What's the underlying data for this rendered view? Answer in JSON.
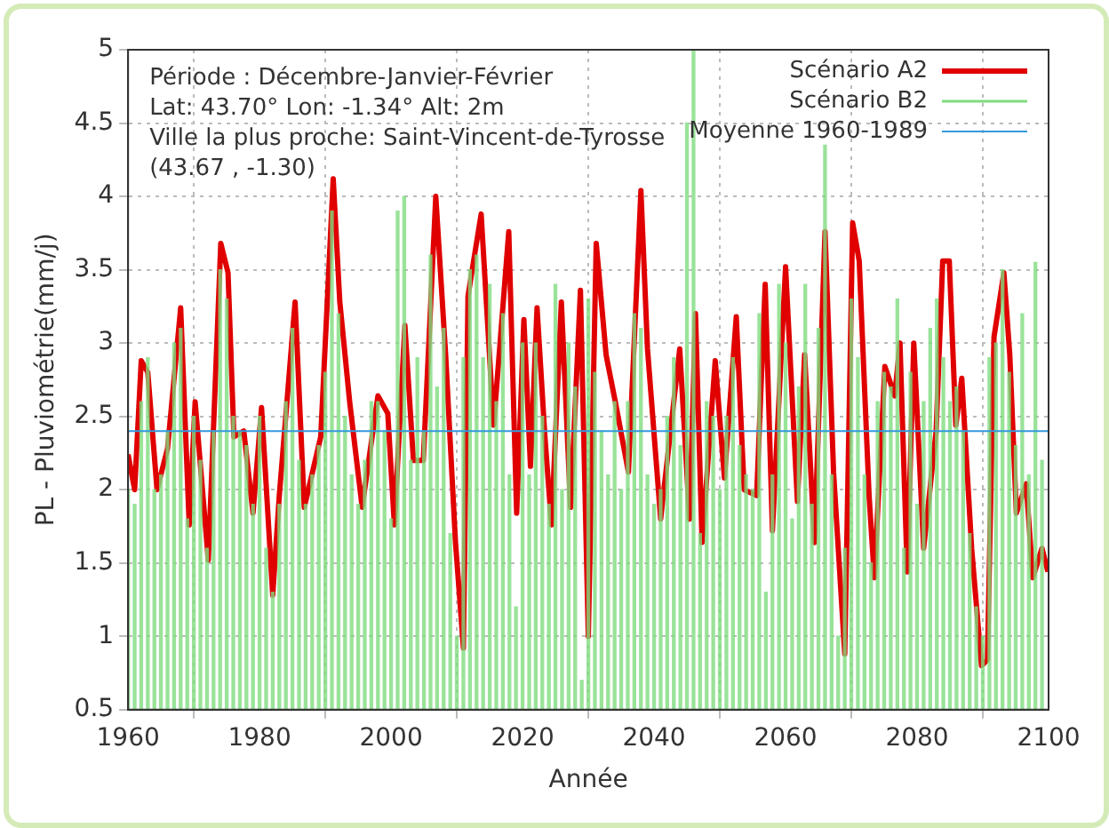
{
  "chart_data": {
    "type": "line",
    "xlabel": "Année",
    "ylabel": "PL - Pluviométrie(mm/j)",
    "annotations": [
      "Période : Décembre-Janvier-Février",
      "Lat: 43.70° Lon: -1.34° Alt: 2m",
      "Ville la plus proche: Saint-Vincent-de-Tyrosse",
      "(43.67 , -1.30)"
    ],
    "xlim": [
      1960,
      2100
    ],
    "xticks": [
      1960,
      1980,
      2000,
      2020,
      2040,
      2060,
      2080,
      2100
    ],
    "ylim": [
      0.5,
      5
    ],
    "yticks": [
      0.5,
      1,
      1.5,
      2,
      2.5,
      3,
      3.5,
      4,
      4.5,
      5
    ],
    "grid": true,
    "legend": "top right",
    "ref_lines": [
      {
        "axis": "y",
        "value": 2.4,
        "label": "Moyenne 1960-1989",
        "color": "#3399dd"
      }
    ],
    "series": [
      {
        "name": "Scénario A2",
        "color": "#e00000",
        "x": [
          1960,
          1961,
          1962,
          1963,
          1964.4,
          1966,
          1968,
          1969.3,
          1970.2,
          1972.2,
          1974.1,
          1975.2,
          1976.1,
          1977.6,
          1979,
          1980.3,
          1982,
          1983,
          1985.4,
          1986.8,
          1989.3,
          1991.2,
          1992.2,
          1993.7,
          1995.6,
          1998,
          1999.5,
          2000.5,
          2002.1,
          2003.4,
          2004.9,
          2006.8,
          2008.3,
          2009.8,
          2011,
          2011.7,
          2013.7,
          2015.6,
          2017.9,
          2019.1,
          2020.2,
          2021.2,
          2022.2,
          2023.4,
          2024.4,
          2025.9,
          2027.3,
          2028.8,
          2030,
          2031.2,
          2032.7,
          2034.1,
          2036.1,
          2038,
          2039,
          2041,
          2043.9,
          2045.4,
          2046.3,
          2047.3,
          2049.3,
          2050.7,
          2052.5,
          2053.7,
          2055.6,
          2056.9,
          2058,
          2060,
          2061.8,
          2062.9,
          2064.4,
          2066,
          2067.3,
          2069,
          2070.2,
          2071.2,
          2072.7,
          2073.5,
          2075.1,
          2076.6,
          2077.4,
          2078.5,
          2079.5,
          2081,
          2082.9,
          2083.9,
          2084.9,
          2085.9,
          2086.8,
          2088.3,
          2089.8,
          2090.7,
          2091.7,
          2093.2,
          2094.1,
          2095.1,
          2096.6,
          2097.6,
          2099,
          2099.9
        ],
        "values": [
          2.24,
          2.0,
          2.88,
          2.8,
          2.0,
          2.28,
          3.24,
          1.76,
          2.6,
          1.52,
          3.68,
          3.48,
          2.36,
          2.4,
          1.84,
          2.56,
          1.28,
          1.96,
          3.28,
          1.88,
          2.36,
          4.12,
          3.28,
          2.6,
          1.88,
          2.64,
          2.52,
          1.76,
          3.12,
          2.2,
          2.2,
          4.0,
          2.92,
          1.64,
          0.92,
          3.32,
          3.88,
          2.44,
          3.76,
          1.84,
          3.16,
          2.16,
          3.24,
          2.36,
          1.76,
          3.28,
          1.88,
          3.36,
          1.0,
          3.68,
          2.92,
          2.6,
          2.12,
          4.04,
          2.96,
          1.8,
          2.96,
          1.8,
          3.2,
          1.64,
          2.88,
          2.08,
          3.18,
          2.0,
          1.96,
          3.4,
          1.72,
          3.52,
          1.92,
          2.92,
          1.64,
          3.76,
          2.12,
          0.88,
          3.82,
          3.56,
          1.96,
          1.4,
          2.84,
          2.64,
          3.0,
          1.44,
          3.0,
          1.6,
          2.4,
          3.56,
          3.56,
          2.44,
          2.76,
          1.6,
          0.8,
          0.84,
          3.04,
          3.48,
          2.92,
          1.84,
          2.04,
          1.4,
          1.6,
          1.44
        ]
      },
      {
        "name": "Scénario B2",
        "type": "bar",
        "color": "#7fdc7f",
        "x": [
          1960,
          1961,
          1962,
          1963,
          1964,
          1965,
          1966,
          1967,
          1968,
          1969,
          1970,
          1971,
          1972,
          1973,
          1974,
          1975,
          1976,
          1977,
          1978,
          1979,
          1980,
          1981,
          1982,
          1983,
          1984,
          1985,
          1986,
          1987,
          1988,
          1989,
          1990,
          1991,
          1992,
          1993,
          1994,
          1995,
          1996,
          1997,
          1998,
          1999,
          2000,
          2001,
          2002,
          2003,
          2004,
          2005,
          2006,
          2007,
          2008,
          2009,
          2010,
          2011,
          2012,
          2013,
          2014,
          2015,
          2016,
          2017,
          2018,
          2019,
          2020,
          2021,
          2022,
          2023,
          2024,
          2025,
          2026,
          2027,
          2028,
          2029,
          2030,
          2031,
          2032,
          2033,
          2034,
          2035,
          2036,
          2037,
          2038,
          2039,
          2040,
          2041,
          2042,
          2043,
          2044,
          2045,
          2046,
          2047,
          2048,
          2049,
          2050,
          2051,
          2052,
          2053,
          2054,
          2055,
          2056,
          2057,
          2058,
          2059,
          2060,
          2061,
          2062,
          2063,
          2064,
          2065,
          2066,
          2067,
          2068,
          2069,
          2070,
          2071,
          2072,
          2073,
          2074,
          2075,
          2076,
          2077,
          2078,
          2079,
          2080,
          2081,
          2082,
          2083,
          2084,
          2085,
          2086,
          2087,
          2088,
          2089,
          2090,
          2091,
          2092,
          2093,
          2094,
          2095,
          2096,
          2097,
          2098,
          2099
        ],
        "values": [
          2.0,
          1.9,
          2.6,
          2.9,
          2.0,
          2.1,
          2.4,
          3.0,
          3.1,
          1.8,
          2.5,
          2.2,
          1.6,
          2.4,
          3.5,
          3.3,
          2.5,
          2.4,
          2.3,
          1.9,
          2.5,
          1.6,
          1.3,
          1.9,
          2.6,
          3.1,
          2.2,
          1.9,
          2.1,
          2.3,
          2.8,
          3.9,
          3.2,
          2.5,
          2.1,
          1.9,
          2.2,
          2.6,
          2.6,
          2.4,
          1.8,
          3.9,
          4.0,
          2.2,
          2.9,
          2.4,
          3.6,
          2.7,
          3.1,
          1.7,
          1.0,
          2.9,
          3.5,
          3.6,
          2.9,
          3.4,
          2.6,
          3.2,
          2.1,
          1.2,
          3.0,
          2.1,
          3.0,
          2.5,
          1.9,
          3.4,
          2.0,
          3.0,
          2.7,
          0.7,
          3.3,
          2.8,
          2.4,
          2.1,
          2.6,
          2.0,
          2.6,
          3.2,
          3.1,
          2.1,
          1.9,
          2.0,
          2.5,
          2.9,
          2.3,
          4.5,
          5.0,
          1.7,
          2.6,
          2.5,
          2.0,
          2.5,
          2.9,
          2.3,
          2.1,
          2.0,
          3.2,
          1.3,
          2.1,
          3.4,
          3.0,
          1.8,
          2.7,
          3.4,
          1.9,
          3.1,
          4.35,
          2.1,
          1.0,
          1.6,
          3.3,
          2.9,
          2.1,
          1.5,
          2.6,
          2.8,
          2.7,
          3.3,
          1.6,
          2.8,
          1.9,
          2.6,
          3.1,
          3.3,
          2.9,
          2.6,
          2.7,
          2.4,
          1.7,
          1.2,
          1.0,
          2.9,
          3.0,
          3.5,
          2.8,
          2.3,
          3.2,
          2.1,
          3.55,
          2.2
        ]
      }
    ]
  }
}
